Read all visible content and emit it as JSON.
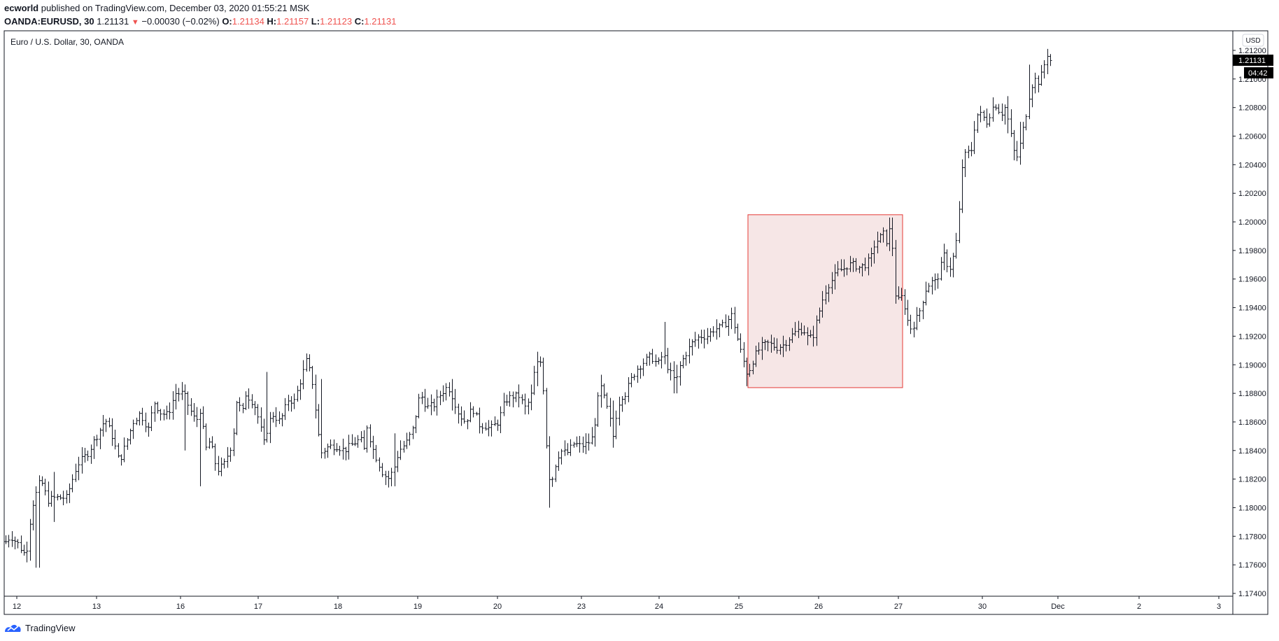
{
  "header": {
    "author": "ecworld",
    "published": "published on TradingView.com, December 03, 2020 01:55:21 MSK",
    "symbol": "OANDA:EURUSD, 30",
    "last": "1.21131",
    "change": "−0.00030 (−0.02%)",
    "o_label": "O:",
    "o_value": "1.21134",
    "h_label": "H:",
    "h_value": "1.21157",
    "l_label": "L:",
    "l_value": "1.21123",
    "c_label": "C:",
    "c_value": "1.21131"
  },
  "footer": {
    "brand": "TradingView"
  },
  "chart_data": {
    "type": "ohlc",
    "title": "Euro / U.S. Dollar, 30, OANDA",
    "currency_badge": "USD",
    "last_price_label": "1.21131",
    "countdown_label": "04:42",
    "ylim": [
      1.174,
      1.2155
    ],
    "y_ticks": [
      "1.17400",
      "1.17600",
      "1.17800",
      "1.18000",
      "1.18200",
      "1.18400",
      "1.18600",
      "1.18800",
      "1.19000",
      "1.19200",
      "1.19400",
      "1.19600",
      "1.19800",
      "1.20000",
      "1.20200",
      "1.20400",
      "1.20600",
      "1.20800",
      "1.21000",
      "1.21200"
    ],
    "x_ticks": [
      "12",
      "13",
      "16",
      "17",
      "18",
      "19",
      "20",
      "23",
      "24",
      "25",
      "26",
      "27",
      "30",
      "Dec",
      "2",
      "3"
    ],
    "bar_count": 345,
    "close_path": [
      [
        0,
        1.1772
      ],
      [
        15,
        1.178
      ],
      [
        25,
        1.1775
      ],
      [
        37,
        1.1766
      ],
      [
        45,
        1.18
      ],
      [
        58,
        1.182
      ],
      [
        68,
        1.1805
      ],
      [
        78,
        1.1807
      ],
      [
        95,
        1.1807
      ],
      [
        110,
        1.183
      ],
      [
        125,
        1.1838
      ],
      [
        140,
        1.1852
      ],
      [
        150,
        1.1862
      ],
      [
        160,
        1.185
      ],
      [
        170,
        1.1832
      ],
      [
        180,
        1.1845
      ],
      [
        190,
        1.186
      ],
      [
        200,
        1.1866
      ],
      [
        212,
        1.1855
      ],
      [
        220,
        1.1874
      ],
      [
        230,
        1.1866
      ],
      [
        240,
        1.1865
      ],
      [
        250,
        1.188
      ],
      [
        262,
        1.188
      ],
      [
        270,
        1.187
      ],
      [
        280,
        1.186
      ],
      [
        287,
        1.187
      ],
      [
        293,
        1.184
      ],
      [
        300,
        1.1847
      ],
      [
        310,
        1.1826
      ],
      [
        320,
        1.183
      ],
      [
        332,
        1.1846
      ],
      [
        339,
        1.188
      ],
      [
        345,
        1.1862
      ],
      [
        350,
        1.188
      ],
      [
        359,
        1.1875
      ],
      [
        365,
        1.187
      ],
      [
        370,
        1.186
      ],
      [
        377,
        1.1845
      ],
      [
        384,
        1.186
      ],
      [
        390,
        1.1865
      ],
      [
        400,
        1.186
      ],
      [
        412,
        1.1876
      ],
      [
        420,
        1.1874
      ],
      [
        430,
        1.189
      ],
      [
        438,
        1.1903
      ],
      [
        446,
        1.1889
      ],
      [
        458,
        1.1838
      ],
      [
        470,
        1.1843
      ],
      [
        482,
        1.1843
      ],
      [
        492,
        1.184
      ],
      [
        505,
        1.1845
      ],
      [
        515,
        1.1848
      ],
      [
        520,
        1.184
      ],
      [
        524,
        1.1858
      ],
      [
        532,
        1.1842
      ],
      [
        546,
        1.1825
      ],
      [
        554,
        1.182
      ],
      [
        562,
        1.1826
      ],
      [
        570,
        1.184
      ],
      [
        580,
        1.1845
      ],
      [
        590,
        1.1855
      ],
      [
        600,
        1.188
      ],
      [
        610,
        1.187
      ],
      [
        620,
        1.1872
      ],
      [
        630,
        1.188
      ],
      [
        640,
        1.1885
      ],
      [
        648,
        1.1876
      ],
      [
        656,
        1.1865
      ],
      [
        665,
        1.186
      ],
      [
        675,
        1.187
      ],
      [
        685,
        1.1858
      ],
      [
        695,
        1.1857
      ],
      [
        700,
        1.1855
      ],
      [
        712,
        1.186
      ],
      [
        722,
        1.1875
      ],
      [
        732,
        1.1878
      ],
      [
        742,
        1.1878
      ],
      [
        750,
        1.187
      ],
      [
        758,
        1.1876
      ],
      [
        765,
        1.19
      ],
      [
        772,
        1.1902
      ],
      [
        777,
        1.188
      ],
      [
        782,
        1.183
      ],
      [
        787,
        1.1815
      ],
      [
        792,
        1.1828
      ],
      [
        800,
        1.184
      ],
      [
        810,
        1.1838
      ],
      [
        820,
        1.1845
      ],
      [
        830,
        1.1843
      ],
      [
        840,
        1.1845
      ],
      [
        848,
        1.185
      ],
      [
        852,
        1.187
      ],
      [
        858,
        1.1885
      ],
      [
        864,
        1.1875
      ],
      [
        870,
        1.1865
      ],
      [
        876,
        1.185
      ],
      [
        882,
        1.187
      ],
      [
        888,
        1.1878
      ],
      [
        894,
        1.188
      ],
      [
        900,
        1.1888
      ],
      [
        910,
        1.1897
      ],
      [
        920,
        1.1902
      ],
      [
        930,
        1.1906
      ],
      [
        940,
        1.19
      ],
      [
        948,
        1.1908
      ],
      [
        953,
        1.19
      ],
      [
        960,
        1.1892
      ],
      [
        966,
        1.1888
      ],
      [
        972,
        1.19
      ],
      [
        980,
        1.1908
      ],
      [
        990,
        1.1916
      ],
      [
        1000,
        1.192
      ],
      [
        1010,
        1.192
      ],
      [
        1020,
        1.1925
      ],
      [
        1030,
        1.1926
      ],
      [
        1038,
        1.193
      ],
      [
        1046,
        1.1935
      ],
      [
        1052,
        1.1922
      ],
      [
        1058,
        1.191
      ],
      [
        1064,
        1.19
      ],
      [
        1068,
        1.1893
      ],
      [
        1072,
        1.1898
      ],
      [
        1078,
        1.1906
      ],
      [
        1088,
        1.1913
      ],
      [
        1098,
        1.1915
      ],
      [
        1110,
        1.1912
      ],
      [
        1120,
        1.1914
      ],
      [
        1130,
        1.192
      ],
      [
        1140,
        1.1924
      ],
      [
        1148,
        1.1925
      ],
      [
        1155,
        1.1918
      ],
      [
        1162,
        1.192
      ],
      [
        1168,
        1.1932
      ],
      [
        1175,
        1.1945
      ],
      [
        1182,
        1.1955
      ],
      [
        1190,
        1.196
      ],
      [
        1198,
        1.1966
      ],
      [
        1205,
        1.1967
      ],
      [
        1212,
        1.197
      ],
      [
        1220,
        1.197
      ],
      [
        1228,
        1.1968
      ],
      [
        1236,
        1.197
      ],
      [
        1244,
        1.1974
      ],
      [
        1250,
        1.1985
      ],
      [
        1256,
        1.1988
      ],
      [
        1262,
        1.1992
      ],
      [
        1266,
        1.1985
      ],
      [
        1270,
        1.1996
      ],
      [
        1275,
        1.1985
      ],
      [
        1279,
        1.195
      ],
      [
        1284,
        1.1945
      ],
      [
        1290,
        1.1948
      ],
      [
        1296,
        1.1932
      ],
      [
        1302,
        1.1925
      ],
      [
        1308,
        1.193
      ],
      [
        1316,
        1.194
      ],
      [
        1322,
        1.1952
      ],
      [
        1330,
        1.1958
      ],
      [
        1338,
        1.1958
      ],
      [
        1344,
        1.1968
      ],
      [
        1350,
        1.1978
      ],
      [
        1356,
        1.1965
      ],
      [
        1362,
        1.1975
      ],
      [
        1368,
        1.199
      ],
      [
        1372,
        1.2015
      ],
      [
        1376,
        1.2045
      ],
      [
        1382,
        1.2048
      ],
      [
        1388,
        1.205
      ],
      [
        1395,
        1.2075
      ],
      [
        1402,
        1.2075
      ],
      [
        1410,
        1.207
      ],
      [
        1418,
        1.208
      ],
      [
        1424,
        1.2082
      ],
      [
        1430,
        1.2075
      ],
      [
        1436,
        1.208
      ],
      [
        1442,
        1.2068
      ],
      [
        1448,
        1.205
      ],
      [
        1454,
        1.2045
      ],
      [
        1460,
        1.206
      ],
      [
        1466,
        1.2075
      ],
      [
        1472,
        1.2092
      ],
      [
        1478,
        1.21
      ],
      [
        1484,
        1.2098
      ],
      [
        1490,
        1.2105
      ],
      [
        1496,
        1.2118
      ],
      [
        1501,
        1.2113
      ]
    ],
    "spikes": [
      {
        "bar": 54,
        "high": 1.1815,
        "low": 1.1758
      },
      {
        "bar": 76,
        "high": 1.1825,
        "low": 1.179
      },
      {
        "bar": 263,
        "high": 1.187,
        "low": 1.184
      },
      {
        "bar": 285,
        "high": 1.1862,
        "low": 1.1815
      },
      {
        "bar": 382,
        "high": 1.1895,
        "low": 1.186
      },
      {
        "bar": 460,
        "high": 1.189,
        "low": 1.1865
      },
      {
        "bar": 562,
        "high": 1.1852,
        "low": 1.1815
      },
      {
        "bar": 647,
        "high": 1.189,
        "low": 1.1868
      },
      {
        "bar": 768,
        "high": 1.1905,
        "low": 1.1885
      },
      {
        "bar": 786,
        "high": 1.185,
        "low": 1.18
      },
      {
        "bar": 859,
        "high": 1.1893,
        "low": 1.187
      },
      {
        "bar": 877,
        "high": 1.1875,
        "low": 1.1842
      },
      {
        "bar": 951,
        "high": 1.193,
        "low": 1.1905
      },
      {
        "bar": 965,
        "high": 1.19,
        "low": 1.188
      },
      {
        "bar": 1047,
        "high": 1.194,
        "low": 1.1925
      },
      {
        "bar": 1068,
        "high": 1.19,
        "low": 1.1885
      },
      {
        "bar": 1273,
        "high": 1.2003,
        "low": 1.198
      },
      {
        "bar": 1279,
        "high": 1.1978,
        "low": 1.1945
      },
      {
        "bar": 1300,
        "high": 1.1935,
        "low": 1.1922
      },
      {
        "bar": 1440,
        "high": 1.2088,
        "low": 1.2062
      },
      {
        "bar": 1458,
        "high": 1.207,
        "low": 1.204
      },
      {
        "bar": 1471,
        "high": 1.211,
        "low": 1.2085
      }
    ],
    "highlight_box": {
      "x0_bar": 1069,
      "x1_bar": 1290,
      "y_top": 1.2005,
      "y_bottom": 1.1884,
      "border_color": "#e53935",
      "fill_color": "#f6e6e6"
    },
    "colors": {
      "bar": "#131722",
      "last_price_bg": "#000000",
      "axis_text": "#131722",
      "frame": "#131722",
      "red_text": "#ef5350"
    }
  }
}
